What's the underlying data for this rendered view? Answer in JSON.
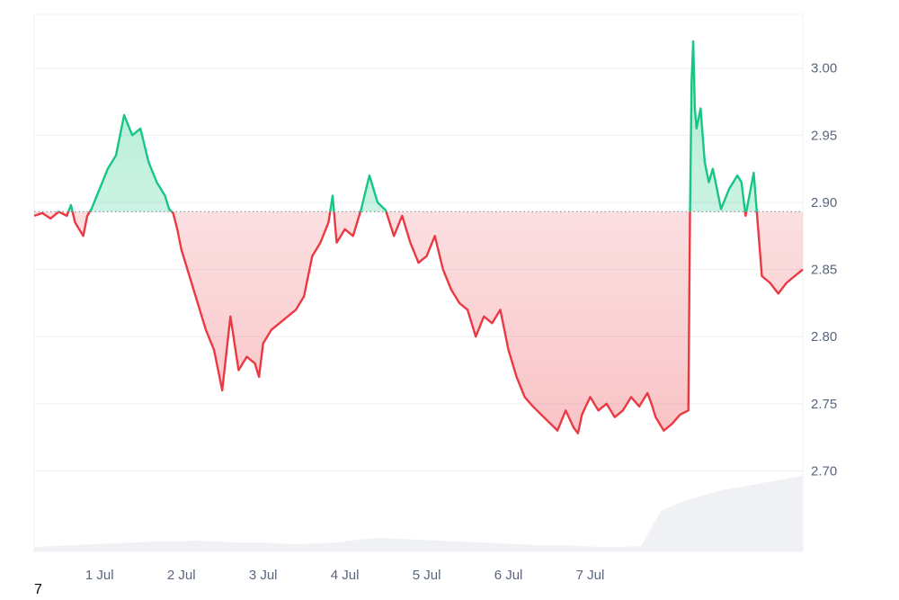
{
  "chart_data": {
    "type": "line",
    "baseline": 2.893,
    "ylim": [
      2.64,
      3.04
    ],
    "y_ticks": [
      "2.70",
      "2.75",
      "2.80",
      "2.85",
      "2.90",
      "2.95",
      "3.00"
    ],
    "x_ticks": [
      "1 Jul",
      "2 Jul",
      "3 Jul",
      "4 Jul",
      "5 Jul",
      "6 Jul",
      "7 Jul"
    ],
    "colors": {
      "above": "#16c784",
      "below": "#ea3943",
      "grid": "#eef0f3",
      "baseline": "#8a94a6",
      "volume": "#eff1f5"
    },
    "series": [
      {
        "x": [
          0.0,
          0.1,
          0.2,
          0.3,
          0.4,
          0.45,
          0.5,
          0.6,
          0.65,
          0.7,
          0.8,
          0.9,
          1.0,
          1.1,
          1.2,
          1.3,
          1.4,
          1.5,
          1.6,
          1.65,
          1.7,
          1.75,
          1.8,
          1.9,
          2.0,
          2.1,
          2.2,
          2.3,
          2.4,
          2.5,
          2.6,
          2.7,
          2.75,
          2.8,
          2.9,
          3.0,
          3.1,
          3.2,
          3.3,
          3.4,
          3.5,
          3.6,
          3.65,
          3.7,
          3.8,
          3.9,
          4.0,
          4.1,
          4.2,
          4.3,
          4.4,
          4.5,
          4.6,
          4.7,
          4.8,
          4.9,
          5.0,
          5.1,
          5.2,
          5.3,
          5.4,
          5.5,
          5.6,
          5.7,
          5.8,
          5.9,
          6.0,
          6.1,
          6.2,
          6.3,
          6.4,
          6.5,
          6.6,
          6.65,
          6.7,
          6.8,
          6.9,
          7.0,
          7.1,
          7.2,
          7.3,
          7.4,
          7.5,
          7.55,
          7.6,
          7.7,
          7.8,
          7.9,
          8.0,
          8.02,
          8.04,
          8.06,
          8.08,
          8.1,
          8.15,
          8.2,
          8.25,
          8.3,
          8.35,
          8.4,
          8.5,
          8.6,
          8.65,
          8.7,
          8.8,
          8.9,
          9.0,
          9.1,
          9.2,
          9.3,
          9.4
        ],
        "values": [
          2.89,
          2.892,
          2.888,
          2.893,
          2.89,
          2.898,
          2.885,
          2.875,
          2.89,
          2.895,
          2.91,
          2.925,
          2.935,
          2.965,
          2.95,
          2.955,
          2.93,
          2.915,
          2.905,
          2.895,
          2.892,
          2.88,
          2.865,
          2.845,
          2.825,
          2.805,
          2.79,
          2.76,
          2.815,
          2.775,
          2.785,
          2.78,
          2.77,
          2.795,
          2.805,
          2.81,
          2.815,
          2.82,
          2.83,
          2.86,
          2.87,
          2.885,
          2.905,
          2.87,
          2.88,
          2.875,
          2.895,
          2.92,
          2.9,
          2.894,
          2.875,
          2.89,
          2.87,
          2.855,
          2.86,
          2.875,
          2.85,
          2.835,
          2.825,
          2.82,
          2.8,
          2.815,
          2.81,
          2.82,
          2.79,
          2.77,
          2.755,
          2.748,
          2.742,
          2.736,
          2.73,
          2.745,
          2.732,
          2.728,
          2.742,
          2.755,
          2.745,
          2.75,
          2.74,
          2.745,
          2.755,
          2.748,
          2.758,
          2.75,
          2.74,
          2.73,
          2.735,
          2.742,
          2.745,
          2.89,
          2.99,
          3.02,
          2.97,
          2.955,
          2.97,
          2.93,
          2.915,
          2.925,
          2.91,
          2.895,
          2.91,
          2.92,
          2.915,
          2.89,
          2.922,
          2.845,
          2.84,
          2.832,
          2.84,
          2.845,
          2.85
        ]
      }
    ],
    "volume": [
      0.05,
      0.06,
      0.07,
      0.08,
      0.09,
      0.1,
      0.11,
      0.11,
      0.12,
      0.11,
      0.1,
      0.1,
      0.09,
      0.08,
      0.09,
      0.1,
      0.13,
      0.15,
      0.14,
      0.13,
      0.12,
      0.11,
      0.1,
      0.09,
      0.08,
      0.07,
      0.07,
      0.06,
      0.05,
      0.05,
      0.06,
      0.45,
      0.55,
      0.62,
      0.68,
      0.72,
      0.76,
      0.8,
      0.84
    ]
  },
  "footer": {
    "corner_label": "7"
  }
}
